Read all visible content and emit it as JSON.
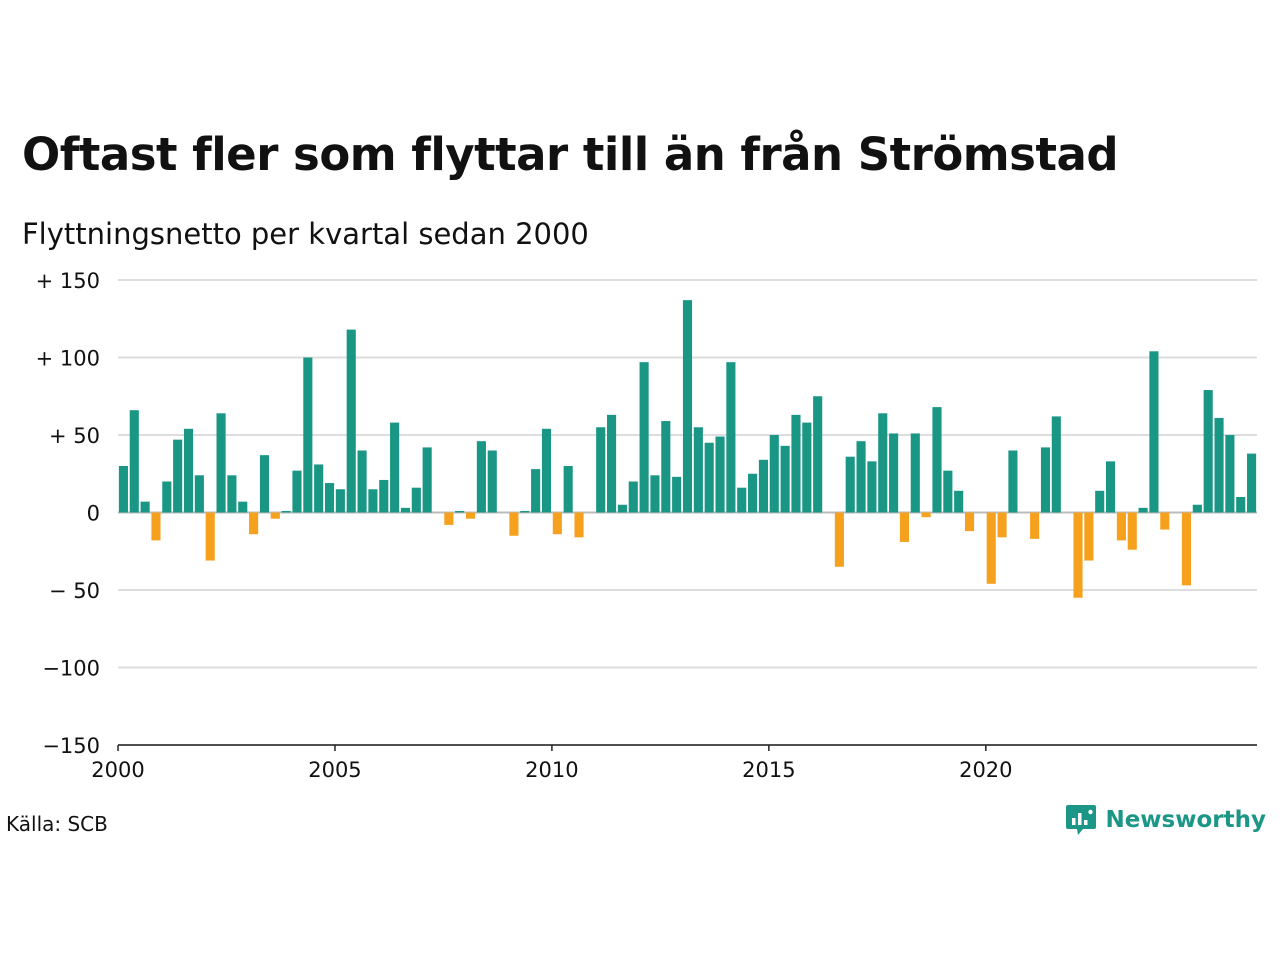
{
  "title": "Oftast fler som flyttar till än från Strömstad",
  "subtitle": "Flyttningsnetto per kvartal sedan 2000",
  "source": "Källa: SCB",
  "brand": "Newsworthy",
  "colors": {
    "positive": "#1a9685",
    "negative": "#f5a11d",
    "grid": "#dddddd",
    "brand": "#1c9686"
  },
  "chart_data": {
    "type": "bar",
    "title": "Oftast fler som flyttar till än från Strömstad",
    "subtitle": "Flyttningsnetto per kvartal sedan 2000",
    "xlabel": "",
    "ylabel": "",
    "x_start": "2000 Q1",
    "x_ticks": [
      "2000",
      "2005",
      "2010",
      "2015",
      "2020"
    ],
    "y_ticks": [
      150,
      100,
      50,
      0,
      -50,
      -100,
      -150
    ],
    "y_tick_labels": [
      "+ 150",
      "+ 100",
      "+  50",
      "0",
      "− 50",
      "−100",
      "−150"
    ],
    "ylim": [
      -150,
      150
    ],
    "grid": true,
    "values": [
      30,
      66,
      7,
      -18,
      20,
      47,
      54,
      24,
      -31,
      64,
      24,
      7,
      -14,
      37,
      -4,
      1,
      27,
      100,
      31,
      19,
      15,
      118,
      40,
      15,
      21,
      58,
      3,
      16,
      42,
      0,
      -8,
      1,
      -4,
      46,
      40,
      0,
      -15,
      1,
      28,
      54,
      -14,
      30,
      -16,
      0,
      55,
      63,
      5,
      20,
      97,
      24,
      59,
      23,
      137,
      55,
      45,
      49,
      97,
      16,
      25,
      34,
      50,
      43,
      63,
      58,
      75,
      0,
      -35,
      36,
      46,
      33,
      64,
      51,
      -19,
      51,
      -3,
      68,
      27,
      14,
      -12,
      0,
      -46,
      -16,
      40,
      0,
      -17,
      42,
      62,
      0,
      -55,
      -31,
      14,
      33,
      -18,
      -24,
      3,
      104,
      -11,
      0,
      -47,
      5,
      79,
      61,
      50,
      10,
      38
    ]
  }
}
